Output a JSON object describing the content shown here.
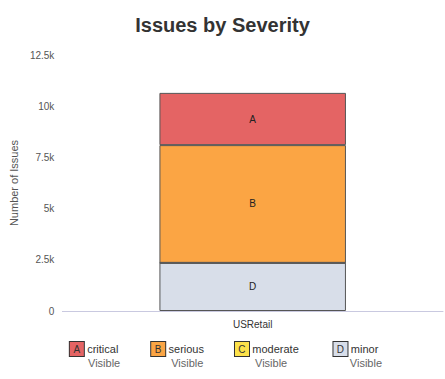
{
  "chart_data": {
    "type": "bar",
    "title": "Issues by Severity",
    "y_label": "Number of Issues",
    "categories": [
      "USRetail"
    ],
    "stacked": true,
    "data_labels": true,
    "grid": false,
    "legend": "bottom",
    "ylim": [
      0,
      12500
    ],
    "yticks": [
      0,
      {
        "value": 2500,
        "label": "2.5k"
      },
      {
        "value": 5000,
        "label": "5k"
      },
      {
        "value": 7500,
        "label": "7.5k"
      },
      {
        "value": 10000,
        "label": "10k"
      },
      {
        "value": 12500,
        "label": "12.5k"
      }
    ],
    "series": [
      {
        "name": "critical",
        "letter": "A",
        "state": "Visible",
        "color": "#e46464",
        "values": [
          2550
        ]
      },
      {
        "name": "serious",
        "letter": "B",
        "state": "Visible",
        "color": "#fba544",
        "values": [
          5750
        ]
      },
      {
        "name": "moderate",
        "letter": "C",
        "state": "Visible",
        "color": "#fde24a",
        "values": [
          0
        ]
      },
      {
        "name": "minor",
        "letter": "D",
        "state": "Visible",
        "color": "#d8dee9",
        "values": [
          2350
        ]
      }
    ]
  }
}
